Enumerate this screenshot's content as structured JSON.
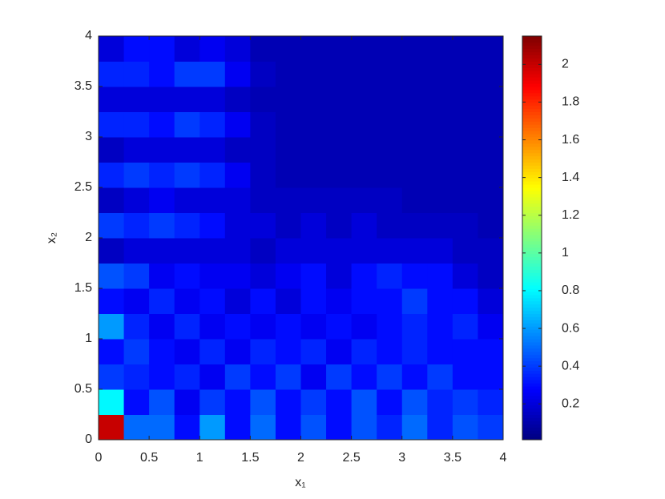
{
  "chart_data": {
    "type": "heatmap",
    "xlabel": "x₁",
    "ylabel": "x₂",
    "xlim": [
      0,
      4
    ],
    "ylim": [
      0,
      4
    ],
    "xticks": [
      0,
      0.5,
      1,
      1.5,
      2,
      2.5,
      3,
      3.5,
      4
    ],
    "yticks": [
      0,
      0.5,
      1,
      1.5,
      2,
      2.5,
      3,
      3.5,
      4
    ],
    "colormap": "jet",
    "clim": [
      0.01,
      2.15
    ],
    "colorbar_ticks": [
      0.2,
      0.4,
      0.6,
      0.8,
      1,
      1.2,
      1.4,
      1.6,
      1.8,
      2
    ],
    "z": [
      [
        2.0,
        0.5,
        0.5,
        0.3,
        0.6,
        0.3,
        0.5,
        0.3,
        0.45,
        0.3,
        0.45,
        0.35,
        0.5,
        0.35,
        0.45,
        0.4
      ],
      [
        0.8,
        0.3,
        0.45,
        0.25,
        0.4,
        0.3,
        0.45,
        0.3,
        0.4,
        0.3,
        0.45,
        0.3,
        0.45,
        0.35,
        0.4,
        0.35
      ],
      [
        0.4,
        0.35,
        0.3,
        0.35,
        0.25,
        0.4,
        0.3,
        0.4,
        0.25,
        0.4,
        0.3,
        0.4,
        0.3,
        0.4,
        0.3,
        0.3
      ],
      [
        0.3,
        0.4,
        0.3,
        0.25,
        0.35,
        0.25,
        0.35,
        0.3,
        0.35,
        0.25,
        0.35,
        0.3,
        0.35,
        0.3,
        0.3,
        0.3
      ],
      [
        0.6,
        0.35,
        0.25,
        0.35,
        0.25,
        0.3,
        0.25,
        0.3,
        0.25,
        0.3,
        0.25,
        0.3,
        0.35,
        0.3,
        0.35,
        0.25
      ],
      [
        0.3,
        0.25,
        0.35,
        0.25,
        0.3,
        0.2,
        0.3,
        0.2,
        0.3,
        0.25,
        0.3,
        0.3,
        0.4,
        0.3,
        0.3,
        0.2
      ],
      [
        0.45,
        0.4,
        0.25,
        0.3,
        0.25,
        0.25,
        0.2,
        0.25,
        0.3,
        0.2,
        0.3,
        0.35,
        0.3,
        0.3,
        0.2,
        0.15
      ],
      [
        0.15,
        0.2,
        0.2,
        0.2,
        0.2,
        0.2,
        0.15,
        0.2,
        0.2,
        0.2,
        0.2,
        0.2,
        0.2,
        0.2,
        0.15,
        0.15
      ],
      [
        0.4,
        0.35,
        0.4,
        0.35,
        0.3,
        0.2,
        0.2,
        0.15,
        0.2,
        0.15,
        0.2,
        0.15,
        0.15,
        0.15,
        0.15,
        0.12
      ],
      [
        0.15,
        0.2,
        0.25,
        0.2,
        0.2,
        0.2,
        0.15,
        0.15,
        0.15,
        0.15,
        0.15,
        0.15,
        0.12,
        0.12,
        0.12,
        0.12
      ],
      [
        0.35,
        0.4,
        0.35,
        0.4,
        0.35,
        0.25,
        0.15,
        0.12,
        0.12,
        0.12,
        0.12,
        0.12,
        0.12,
        0.12,
        0.12,
        0.12
      ],
      [
        0.15,
        0.2,
        0.2,
        0.2,
        0.2,
        0.15,
        0.15,
        0.12,
        0.12,
        0.12,
        0.12,
        0.12,
        0.12,
        0.12,
        0.12,
        0.12
      ],
      [
        0.35,
        0.35,
        0.3,
        0.4,
        0.35,
        0.25,
        0.15,
        0.12,
        0.12,
        0.12,
        0.12,
        0.12,
        0.12,
        0.12,
        0.12,
        0.12
      ],
      [
        0.2,
        0.2,
        0.2,
        0.2,
        0.2,
        0.15,
        0.12,
        0.12,
        0.12,
        0.12,
        0.12,
        0.12,
        0.12,
        0.12,
        0.12,
        0.12
      ],
      [
        0.35,
        0.35,
        0.3,
        0.4,
        0.4,
        0.25,
        0.15,
        0.12,
        0.12,
        0.12,
        0.12,
        0.12,
        0.12,
        0.12,
        0.12,
        0.12
      ],
      [
        0.2,
        0.3,
        0.3,
        0.2,
        0.25,
        0.2,
        0.12,
        0.12,
        0.12,
        0.12,
        0.12,
        0.12,
        0.12,
        0.12,
        0.12,
        0.12
      ]
    ]
  }
}
